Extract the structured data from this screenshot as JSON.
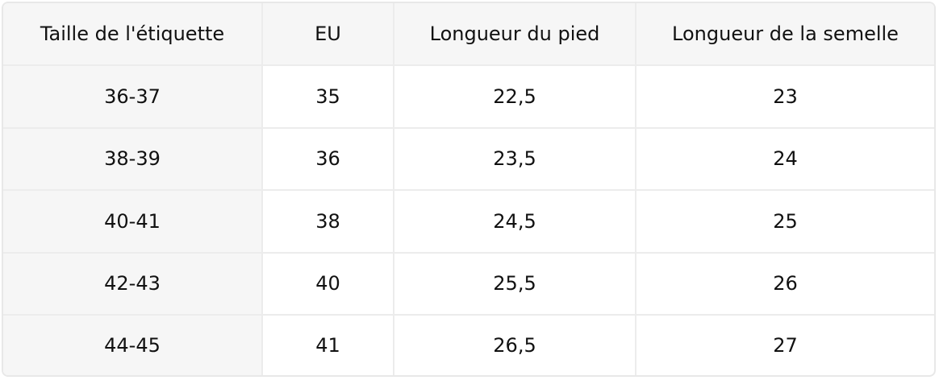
{
  "table": {
    "headers": [
      "Taille de l'étiquette",
      "EU",
      "Longueur du pied",
      "Longueur de la semelle"
    ],
    "rows": [
      [
        "36-37",
        "35",
        "22,5",
        "23"
      ],
      [
        "38-39",
        "36",
        "23,5",
        "24"
      ],
      [
        "40-41",
        "38",
        "24,5",
        "25"
      ],
      [
        "42-43",
        "40",
        "25,5",
        "26"
      ],
      [
        "44-45",
        "41",
        "26,5",
        "27"
      ]
    ]
  }
}
